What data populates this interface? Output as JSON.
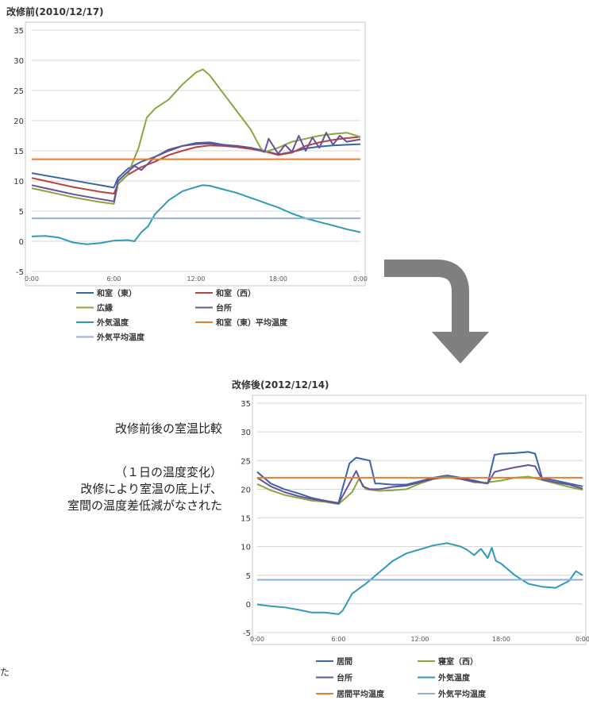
{
  "captions": {
    "title": "改修前後の室温比較",
    "sub_lines": [
      "（１日の温度変化）",
      "改修により室温の底上げ、",
      "室間の温度差低減がなされた"
    ],
    "stray_char": "た"
  },
  "colors": {
    "blue": "#3a63a8",
    "red": "#b8413b",
    "green": "#87a83f",
    "purple": "#6a4f9b",
    "teal": "#2f9bb8",
    "orange": "#ea7d2d",
    "lightblue": "#8eb0d9",
    "arrow": "#7f7f7f"
  },
  "chart_data": [
    {
      "type": "line",
      "title": "改修前(2010/12/17)",
      "ylim": [
        -5,
        35
      ],
      "yticks": [
        -5,
        0,
        5,
        10,
        15,
        20,
        25,
        30,
        35
      ],
      "xlim": [
        0,
        24
      ],
      "xticks": [
        "0:00",
        "6:00",
        "12:00",
        "18:00",
        "0:00"
      ],
      "grid": "horizontal",
      "legend": "below, two columns",
      "series": [
        {
          "name": "和室（東）",
          "color": "#3a63a8",
          "x": [
            0,
            1,
            2,
            3,
            4,
            5,
            6,
            6.3,
            7,
            8,
            9,
            10,
            11,
            12,
            13,
            14,
            15,
            16,
            17,
            18,
            19,
            20,
            21,
            22,
            23,
            24
          ],
          "y": [
            11.3,
            10.9,
            10.5,
            10.1,
            9.7,
            9.3,
            8.9,
            10.5,
            12.0,
            13.2,
            14.0,
            15.2,
            15.8,
            16.3,
            16.4,
            16.0,
            15.8,
            15.5,
            15.0,
            14.4,
            14.8,
            15.4,
            15.7,
            15.9,
            16.0,
            16.1
          ]
        },
        {
          "name": "和室（西）",
          "color": "#b8413b",
          "x": [
            0,
            1,
            2,
            3,
            4,
            5,
            6,
            6.3,
            7,
            8,
            9,
            10,
            11,
            12,
            13,
            14,
            15,
            16,
            17,
            18,
            19,
            20,
            21,
            22,
            23,
            24
          ],
          "y": [
            10.5,
            10.0,
            9.5,
            9.0,
            8.6,
            8.2,
            7.9,
            9.5,
            11.0,
            12.3,
            13.2,
            14.3,
            15.0,
            15.6,
            15.9,
            15.8,
            15.6,
            15.3,
            14.9,
            14.3,
            14.7,
            15.8,
            16.4,
            16.8,
            17.1,
            17.3
          ]
        },
        {
          "name": "広縁",
          "color": "#87a83f",
          "x": [
            0,
            1,
            2,
            3,
            4,
            5,
            6,
            6.3,
            7,
            7.8,
            8.4,
            9,
            10,
            11,
            12,
            12.5,
            13,
            14,
            15,
            16,
            16.7,
            17,
            18,
            19,
            20,
            21,
            22,
            23,
            24
          ],
          "y": [
            8.8,
            8.3,
            7.8,
            7.3,
            6.9,
            6.5,
            6.2,
            9.5,
            11.0,
            15.5,
            20.5,
            22.0,
            23.5,
            26.0,
            28.0,
            28.5,
            27.5,
            24.5,
            21.5,
            18.5,
            15.5,
            14.8,
            15.5,
            16.5,
            17.0,
            17.5,
            17.8,
            18.0,
            17.3
          ]
        },
        {
          "name": "台所",
          "color": "#6a4f9b",
          "x": [
            0,
            1,
            2,
            3,
            4,
            5,
            6,
            6.3,
            7,
            7.5,
            8,
            9,
            10,
            11,
            12,
            13,
            14,
            15,
            16,
            17,
            17.3,
            18,
            18.5,
            19,
            19.5,
            20,
            20.5,
            21,
            21.5,
            22,
            22.5,
            23,
            24
          ],
          "y": [
            9.3,
            8.8,
            8.3,
            7.8,
            7.4,
            7.0,
            6.6,
            10.0,
            11.5,
            12.5,
            11.8,
            14.0,
            15.0,
            15.8,
            16.1,
            16.2,
            15.9,
            15.8,
            15.5,
            14.8,
            17.0,
            14.5,
            16.0,
            14.8,
            17.5,
            15.0,
            17.2,
            15.5,
            18.0,
            16.0,
            17.5,
            16.5,
            16.9
          ]
        },
        {
          "name": "外気温度",
          "color": "#2f9bb8",
          "x": [
            0,
            1,
            2,
            3,
            4,
            5,
            6,
            7,
            7.5,
            8,
            8.5,
            9,
            10,
            11,
            12,
            12.5,
            13,
            14,
            15,
            16,
            17,
            18,
            19,
            20,
            21,
            22,
            23,
            24
          ],
          "y": [
            0.8,
            0.9,
            0.6,
            -0.2,
            -0.5,
            -0.3,
            0.1,
            0.2,
            0.0,
            1.5,
            2.5,
            4.5,
            6.8,
            8.3,
            9.0,
            9.3,
            9.2,
            8.6,
            8.0,
            7.2,
            6.4,
            5.6,
            4.6,
            3.8,
            3.2,
            2.6,
            2.0,
            1.5
          ]
        },
        {
          "name": "和室（東）平均温度",
          "color": "#ea7d2d",
          "x": [
            0,
            24
          ],
          "y": [
            13.6,
            13.6
          ]
        },
        {
          "name": "外気平均温度",
          "color": "#8eb0d9",
          "x": [
            0,
            24
          ],
          "y": [
            3.8,
            3.8
          ]
        }
      ]
    },
    {
      "type": "line",
      "title": "改修後(2012/12/14)",
      "ylim": [
        -5,
        35
      ],
      "yticks": [
        -5,
        0,
        5,
        10,
        15,
        20,
        25,
        30,
        35
      ],
      "xlim": [
        0,
        24
      ],
      "xticks": [
        "0:00",
        "6:00",
        "12:00",
        "18:00",
        "0:00"
      ],
      "grid": "horizontal",
      "legend": "below, two columns",
      "series": [
        {
          "name": "居間",
          "color": "#3a63a8",
          "x": [
            0,
            1,
            2,
            3,
            4,
            5,
            6,
            6.8,
            7.3,
            8.3,
            8.7,
            9,
            10,
            11,
            12,
            13,
            14,
            15,
            16,
            17,
            17.5,
            18,
            19,
            20,
            20.5,
            21,
            22,
            23,
            24
          ],
          "y": [
            23.0,
            21.0,
            20.0,
            19.3,
            18.5,
            18.0,
            17.6,
            24.5,
            25.5,
            25.0,
            21.0,
            21.0,
            20.8,
            20.8,
            21.4,
            22.0,
            22.4,
            22.0,
            21.5,
            21.0,
            26.0,
            26.2,
            26.3,
            26.5,
            26.2,
            22.0,
            21.5,
            21.0,
            20.5
          ]
        },
        {
          "name": "寝室（西）",
          "color": "#87a83f",
          "x": [
            0,
            1,
            2,
            3,
            4,
            5,
            6,
            7,
            7.5,
            8,
            9,
            10,
            11,
            12,
            13,
            14,
            15,
            16,
            17,
            18,
            19,
            20,
            21,
            22,
            23,
            24
          ],
          "y": [
            20.9,
            19.8,
            19.0,
            18.5,
            18.0,
            17.8,
            17.4,
            19.5,
            21.8,
            20.0,
            19.7,
            19.8,
            20.0,
            21.0,
            21.8,
            22.2,
            21.8,
            21.2,
            21.2,
            21.5,
            22.0,
            22.2,
            21.6,
            21.0,
            20.4,
            19.9
          ]
        },
        {
          "name": "台所",
          "color": "#6a4f9b",
          "x": [
            0,
            1,
            2,
            3,
            4,
            5,
            6,
            6.8,
            7.3,
            7.8,
            8.3,
            9,
            10,
            11,
            12,
            13,
            14,
            15,
            16,
            17,
            17.5,
            18,
            19,
            20,
            20.5,
            21,
            22,
            23,
            24
          ],
          "y": [
            22.0,
            20.5,
            19.5,
            18.8,
            18.3,
            17.9,
            17.5,
            21.0,
            23.2,
            20.5,
            20.0,
            20.0,
            20.4,
            20.6,
            21.2,
            21.8,
            22.1,
            21.8,
            21.3,
            21.0,
            23.0,
            23.3,
            23.8,
            24.2,
            24.0,
            21.7,
            21.2,
            20.8,
            20.1
          ]
        },
        {
          "name": "外気温度",
          "color": "#2f9bb8",
          "x": [
            0,
            1,
            2,
            3,
            4,
            5,
            6,
            6.3,
            6.7,
            7,
            8,
            9,
            10,
            11,
            12,
            13,
            14,
            15,
            15.5,
            16,
            16.5,
            17,
            17.3,
            17.6,
            18,
            19,
            20,
            21,
            22,
            23,
            23.5,
            24
          ],
          "y": [
            -0.1,
            -0.4,
            -0.6,
            -1.0,
            -1.5,
            -1.5,
            -1.8,
            -1.2,
            0.5,
            1.8,
            3.5,
            5.5,
            7.5,
            8.8,
            9.5,
            10.2,
            10.6,
            10.0,
            9.4,
            8.5,
            9.6,
            8.0,
            9.8,
            7.5,
            7.0,
            5.0,
            3.5,
            3.0,
            2.8,
            4.0,
            5.7,
            5.0
          ]
        },
        {
          "name": "居間平均温度",
          "color": "#ea7d2d",
          "x": [
            0,
            24
          ],
          "y": [
            22.0,
            22.0
          ]
        },
        {
          "name": "外気平均温度",
          "color": "#8eb0d9",
          "x": [
            0,
            24
          ],
          "y": [
            4.2,
            4.2
          ]
        }
      ]
    }
  ]
}
